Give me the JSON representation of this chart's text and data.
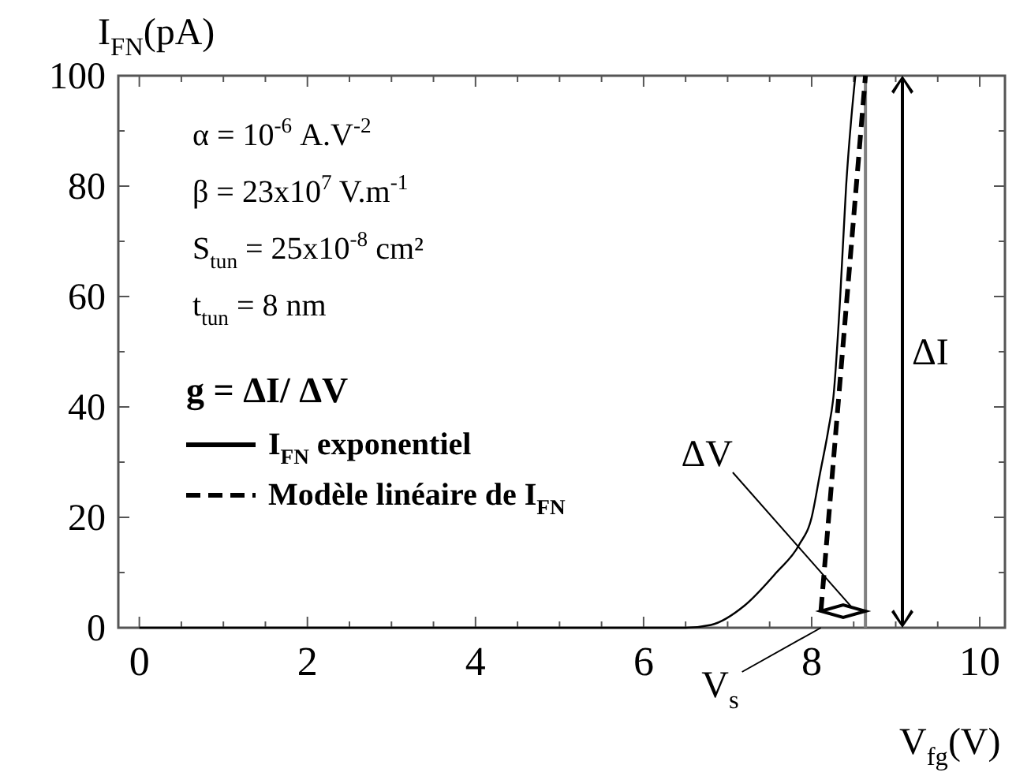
{
  "chart_data": {
    "type": "line",
    "xlabel": "V$_{fg}$(V)",
    "ylabel": "I$_{FN}$(pA)",
    "xlim": [
      -0.25,
      10.3
    ],
    "ylim": [
      0,
      100
    ],
    "xticks": [
      0,
      {
        "value": 0.5,
        "label": null
      },
      {
        "value": 1,
        "label": null
      },
      {
        "value": 1.5,
        "label": null
      },
      2,
      {
        "value": 2.5,
        "label": null
      },
      {
        "value": 3,
        "label": null
      },
      {
        "value": 3.5,
        "label": null
      },
      4,
      {
        "value": 4.5,
        "label": null
      },
      {
        "value": 5,
        "label": null
      },
      {
        "value": 5.5,
        "label": null
      },
      6,
      {
        "value": 6.5,
        "label": null
      },
      {
        "value": 7,
        "label": null
      },
      {
        "value": 7.5,
        "label": null
      },
      8,
      {
        "value": 8.5,
        "label": null
      },
      {
        "value": 9,
        "label": null
      },
      {
        "value": 9.5,
        "label": null
      },
      10
    ],
    "yticks": [
      0,
      {
        "value": 10,
        "label": null
      },
      20,
      {
        "value": 30,
        "label": null
      },
      40,
      {
        "value": 50,
        "label": null
      },
      60,
      {
        "value": 70,
        "label": null
      },
      80,
      {
        "value": 90,
        "label": null
      },
      100
    ],
    "legend": "left",
    "grid": false,
    "marker": "none",
    "series": [
      {
        "name": "I$_{FN}$ exponentiel",
        "color": "#000000",
        "line_style": "solid",
        "x": [
          0,
          6.5,
          6.8,
          7.2,
          7.58,
          7.85,
          8.0,
          8.1,
          8.2,
          8.26,
          8.34,
          8.41,
          8.47,
          8.52
        ],
        "values": [
          0,
          0,
          0.5,
          4,
          10,
          15,
          20,
          28,
          36,
          42,
          60,
          80,
          92,
          100
        ]
      },
      {
        "name": "Modèle linéaire de I$_{FN}$",
        "color": "#000000",
        "line_style": "dashed",
        "x": [
          8.11,
          8.64
        ],
        "values": [
          3,
          100
        ]
      }
    ],
    "ref_lines": [
      {
        "axis": "x",
        "value": 8.64,
        "label": null,
        "color": "#808080"
      }
    ],
    "annotations": [
      "α = 10$^{-6}$ A.V$^{-2}$",
      "β = 23x10$^{7}$ V.m$^{-1}$",
      "S$_{tun}$ = 25x10$^{-8}$ cm²",
      "t$_{tun}$ = 8 nm",
      "g = ΔI/ ΔV",
      "ΔI",
      "ΔV",
      "V$_{s}$"
    ]
  }
}
